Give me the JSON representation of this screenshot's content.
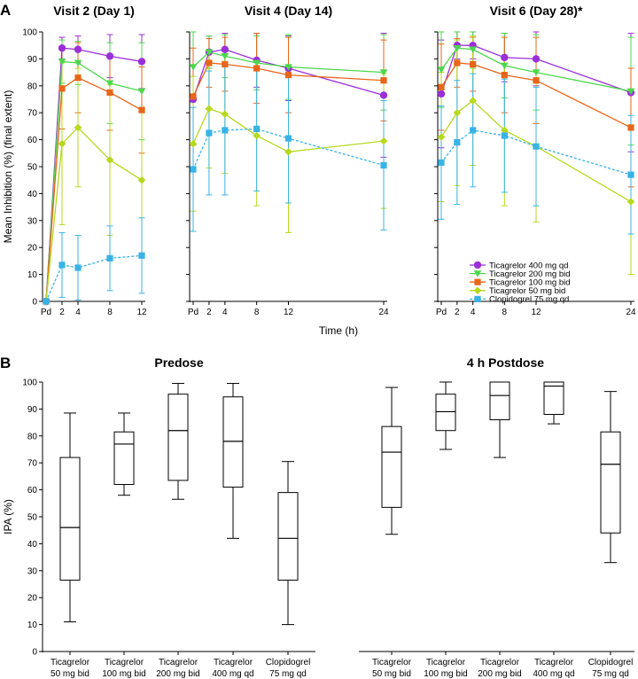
{
  "panel_labels": {
    "a": "A",
    "b": "B"
  },
  "colors": {
    "t400": "#9b30d9",
    "t200": "#4cd84c",
    "t100": "#e8661a",
    "t50": "#b5d91f",
    "clop": "#39b3e6",
    "axis": "#000000"
  },
  "chart_data": [
    {
      "type": "line",
      "panel": "A",
      "ylabel": "Mean Inhibition (%) (final extent)",
      "xlabel": "Time (h)",
      "ylim": [
        0,
        100
      ],
      "yticks": [
        0,
        10,
        20,
        30,
        40,
        50,
        60,
        70,
        80,
        90,
        100
      ],
      "grid": false,
      "legend_position": "lower-right of last subplot",
      "legend": [
        {
          "label": "Ticagrelor 400 mg qd",
          "key": "t400",
          "marker": "circle",
          "dashed": false
        },
        {
          "label": "Ticagrelor 200 mg bid",
          "key": "t200",
          "marker": "triangle-down",
          "dashed": false
        },
        {
          "label": "Ticagrelor 100 mg bid",
          "key": "t100",
          "marker": "square",
          "dashed": false
        },
        {
          "label": "Ticagrelor 50 mg bid",
          "key": "t50",
          "marker": "diamond",
          "dashed": false
        },
        {
          "label": "Clopidogrel 75 mg qd",
          "key": "clop",
          "marker": "square",
          "dashed": true
        }
      ],
      "subplots": [
        {
          "title": "Visit 2 (Day 1)",
          "x": [
            0,
            2,
            4,
            8,
            12
          ],
          "xticklabels": [
            "Pd",
            "2",
            "4",
            "8",
            "12"
          ],
          "xmax": 12,
          "series": [
            {
              "key": "t400",
              "values": [
                0,
                94,
                93.5,
                91,
                89
              ],
              "err": [
                0,
                4,
                5,
                8,
                10
              ]
            },
            {
              "key": "t200",
              "values": [
                0,
                89,
                88.5,
                81,
                78
              ],
              "err": [
                0,
                8,
                8,
                15,
                18
              ]
            },
            {
              "key": "t100",
              "values": [
                0,
                79,
                83,
                77.5,
                71
              ],
              "err": [
                0,
                15,
                13,
                14,
                16
              ]
            },
            {
              "key": "t50",
              "values": [
                0,
                58.5,
                64.5,
                52.5,
                45
              ],
              "err": [
                0,
                30,
                22,
                28,
                27
              ]
            },
            {
              "key": "clop",
              "values": [
                0,
                13.5,
                12.5,
                16,
                17
              ],
              "err": [
                0,
                12,
                12,
                12,
                14
              ]
            }
          ]
        },
        {
          "title": "Visit 4 (Day 14)",
          "x": [
            0,
            2,
            4,
            8,
            12,
            24
          ],
          "xticklabels": [
            "Pd",
            "2",
            "4",
            "8",
            "12",
            "24"
          ],
          "xmax": 24,
          "series": [
            {
              "key": "t400",
              "values": [
                75,
                92.5,
                93.5,
                89.5,
                86.5,
                76.5
              ],
              "err": [
                25,
                6,
                6,
                10,
                12,
                23
              ]
            },
            {
              "key": "t200",
              "values": [
                87,
                92.5,
                91,
                88.5,
                87,
                85
              ],
              "err": [
                13,
                6,
                8,
                10,
                12,
                14
              ]
            },
            {
              "key": "t100",
              "values": [
                76,
                88.5,
                88,
                86.5,
                84,
                82
              ],
              "err": [
                18,
                9,
                10,
                13,
                14,
                15
              ]
            },
            {
              "key": "t50",
              "values": [
                58.5,
                71.5,
                69.5,
                61.5,
                55.5,
                59.5
              ],
              "err": [
                25,
                22,
                22,
                26,
                30,
                25
              ]
            },
            {
              "key": "clop",
              "values": [
                49,
                62.5,
                63.5,
                64,
                60.5,
                50.5
              ],
              "err": [
                23,
                23,
                24,
                23,
                24,
                24
              ]
            }
          ]
        },
        {
          "title": "Visit 6 (Day 28)*",
          "x": [
            0,
            2,
            4,
            8,
            12,
            24
          ],
          "xticklabels": [
            "Pd",
            "2",
            "4",
            "8",
            "12",
            "24"
          ],
          "xmax": 24,
          "series": [
            {
              "key": "t400",
              "values": [
                77,
                95,
                95,
                90.5,
                90,
                77.5
              ],
              "err": [
                20,
                5,
                5,
                9,
                10,
                22
              ]
            },
            {
              "key": "t200",
              "values": [
                86,
                94,
                93.5,
                87.5,
                85,
                78
              ],
              "err": [
                14,
                6,
                7,
                12,
                14,
                20
              ]
            },
            {
              "key": "t100",
              "values": [
                79.5,
                88.5,
                88,
                84,
                82,
                64.5
              ],
              "err": [
                16,
                9,
                10,
                14,
                16,
                22
              ]
            },
            {
              "key": "t50",
              "values": [
                61,
                70,
                74.5,
                63.5,
                57.5,
                37
              ],
              "err": [
                24,
                27,
                24,
                28,
                28,
                27
              ]
            },
            {
              "key": "clop",
              "values": [
                51.5,
                59,
                63.5,
                61.5,
                57.5,
                47
              ],
              "err": [
                21,
                23,
                21,
                21,
                22,
                22
              ]
            }
          ]
        }
      ]
    },
    {
      "type": "box",
      "panel": "B",
      "ylabel": "IPA (%)",
      "ylim": [
        0,
        100
      ],
      "yticks": [
        0,
        10,
        20,
        30,
        40,
        50,
        60,
        70,
        80,
        90,
        100
      ],
      "grid": false,
      "groups": [
        {
          "title": "Predose",
          "boxes": [
            {
              "label": [
                "Ticagrelor",
                "50 mg bid"
              ],
              "min": 11,
              "q1": 26.5,
              "median": 46,
              "q3": 72,
              "max": 88.5
            },
            {
              "label": [
                "Ticagrelor",
                "100 mg bid"
              ],
              "min": 58,
              "q1": 62,
              "median": 77,
              "q3": 81.5,
              "max": 88.5
            },
            {
              "label": [
                "Ticagrelor",
                "200 mg bid"
              ],
              "min": 56.5,
              "q1": 63.5,
              "median": 82,
              "q3": 95.5,
              "max": 99.5
            },
            {
              "label": [
                "Ticagrelor",
                "400 mg qd"
              ],
              "min": 42,
              "q1": 61,
              "median": 78,
              "q3": 94.5,
              "max": 99.5
            },
            {
              "label": [
                "Clopidogrel",
                "75 mg qd"
              ],
              "min": 10,
              "q1": 26.5,
              "median": 42,
              "q3": 59,
              "max": 70.5
            }
          ]
        },
        {
          "title": "4 h Postdose",
          "boxes": [
            {
              "label": [
                "Ticagrelor",
                "50 mg bid"
              ],
              "min": 43.5,
              "q1": 53.5,
              "median": 74,
              "q3": 83.5,
              "max": 98
            },
            {
              "label": [
                "Ticagrelor",
                "100 mg bid"
              ],
              "min": 75,
              "q1": 82,
              "median": 89,
              "q3": 95.5,
              "max": 100
            },
            {
              "label": [
                "Ticagrelor",
                "200 mg bid"
              ],
              "min": 72,
              "q1": 86,
              "median": 95,
              "q3": 100,
              "max": 100
            },
            {
              "label": [
                "Ticagrelor",
                "400 mg qd"
              ],
              "min": 84.5,
              "q1": 88,
              "median": 98.5,
              "q3": 100,
              "max": 100
            },
            {
              "label": [
                "Clopidogrel",
                "75 mg qd"
              ],
              "min": 33,
              "q1": 44,
              "median": 69.5,
              "q3": 81.5,
              "max": 96.5
            }
          ]
        }
      ]
    }
  ]
}
